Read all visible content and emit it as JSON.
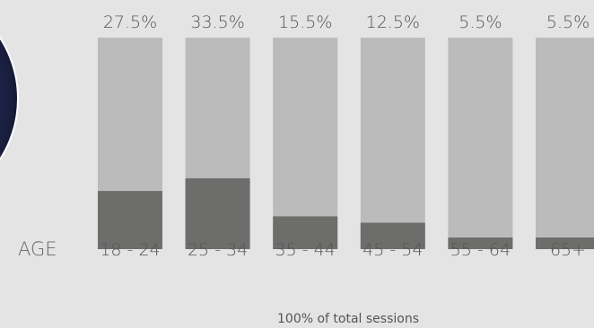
{
  "chart_data": {
    "type": "bar",
    "categories": [
      "18 - 24",
      "25 - 34",
      "35 - 44",
      "45 - 54",
      "55 - 64",
      "65+"
    ],
    "values": [
      27.5,
      33.5,
      15.5,
      12.5,
      5.5,
      5.5
    ],
    "value_labels": [
      "27.5%",
      "33.5%",
      "15.5%",
      "12.5%",
      "5.5%",
      "5.5%"
    ],
    "xlabel": "AGE",
    "ylabel": "",
    "ylim": [
      0,
      100
    ],
    "footnote": "100% of total sessions",
    "colors": {
      "background": "#e4e4e4",
      "bar_track": "#bbbbbb",
      "bar_fill": "#6d6e6c",
      "text": "#555555",
      "decor_circle_light": "#d9c6ff",
      "decor_circle_mid": "#5a49c8",
      "decor_circle_dark": "#141a33"
    }
  }
}
